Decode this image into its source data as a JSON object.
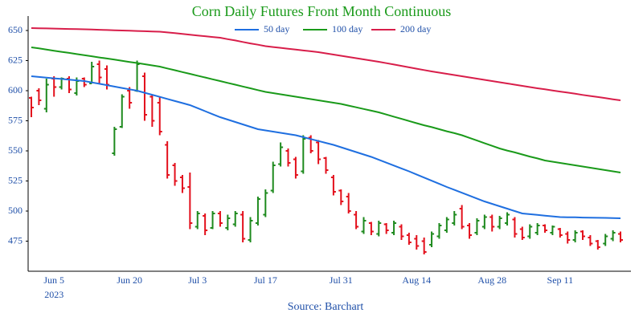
{
  "chart_data": {
    "type": "ohlc",
    "title": "Corn Daily Futures Front Month Continuous",
    "source": "Source: Barchart",
    "year_label": "2023",
    "legend": "top",
    "grid": false,
    "up_color": "#1e8a1e",
    "down_color": "#e3101c",
    "ylim": [
      450,
      662
    ],
    "yticks": [
      475,
      500,
      525,
      550,
      575,
      600,
      625,
      650
    ],
    "categories": [
      null,
      null,
      null,
      "Jun 5",
      null,
      null,
      null,
      null,
      null,
      null,
      null,
      null,
      null,
      "Jun 20",
      null,
      null,
      null,
      null,
      null,
      null,
      null,
      null,
      "Jul 3",
      null,
      null,
      null,
      null,
      null,
      null,
      null,
      null,
      "Jul 17",
      null,
      null,
      null,
      null,
      null,
      null,
      null,
      null,
      null,
      "Jul 31",
      null,
      null,
      null,
      null,
      null,
      null,
      null,
      null,
      null,
      "Aug 14",
      null,
      null,
      null,
      null,
      null,
      null,
      null,
      null,
      null,
      "Aug 28",
      null,
      null,
      null,
      null,
      null,
      null,
      null,
      null,
      "Sep 11",
      null,
      null,
      null,
      null,
      null,
      null,
      null,
      null
    ],
    "ohlc": {
      "open": [
        594,
        600,
        585,
        610,
        603,
        610,
        598,
        610,
        606,
        622,
        618,
        548,
        570,
        600,
        600,
        612,
        595,
        590,
        555,
        538,
        528,
        520,
        487,
        496,
        486,
        498,
        486,
        489,
        497,
        476,
        490,
        497,
        517,
        539,
        550,
        543,
        533,
        561,
        557,
        544,
        528,
        517,
        512,
        497,
        483,
        490,
        481,
        489,
        482,
        487,
        480,
        477,
        475,
        472,
        479,
        484,
        490,
        502,
        488,
        482,
        487,
        495,
        487,
        490,
        493,
        485,
        479,
        482,
        488,
        482,
        485,
        481,
        476,
        483,
        478,
        475,
        473,
        477,
        481
      ],
      "high": [
        595,
        602,
        610,
        612,
        611,
        612,
        611,
        611,
        624,
        625,
        621,
        570,
        597,
        603,
        625,
        615,
        597,
        595,
        558,
        540,
        530,
        532,
        500,
        498,
        500,
        500,
        497,
        500,
        500,
        495,
        512,
        518,
        541,
        557,
        552,
        545,
        563,
        563,
        559,
        545,
        530,
        518,
        515,
        500,
        495,
        491,
        492,
        490,
        492,
        489,
        482,
        480,
        478,
        483,
        490,
        495,
        500,
        505,
        490,
        494,
        497,
        497,
        496,
        499,
        495,
        487,
        489,
        490,
        489,
        488,
        486,
        483,
        484,
        484,
        480,
        476,
        481,
        484,
        483
      ],
      "low": [
        578,
        588,
        582,
        595,
        601,
        598,
        596,
        603,
        606,
        606,
        601,
        546,
        569,
        585,
        599,
        575,
        570,
        563,
        527,
        521,
        515,
        485,
        485,
        480,
        485,
        487,
        484,
        487,
        474,
        474,
        488,
        495,
        515,
        537,
        537,
        527,
        531,
        548,
        539,
        531,
        513,
        505,
        498,
        485,
        481,
        480,
        479,
        481,
        480,
        476,
        472,
        468,
        464,
        470,
        477,
        482,
        488,
        485,
        477,
        480,
        485,
        483,
        485,
        488,
        478,
        476,
        477,
        480,
        482,
        480,
        478,
        473,
        474,
        476,
        471,
        468,
        471,
        475,
        474
      ],
      "close": [
        586,
        592,
        605,
        603,
        610,
        601,
        608,
        605,
        620,
        611,
        605,
        568,
        595,
        590,
        622,
        580,
        575,
        566,
        530,
        525,
        519,
        490,
        498,
        484,
        498,
        490,
        494,
        498,
        477,
        492,
        510,
        515,
        538,
        553,
        540,
        530,
        560,
        550,
        543,
        534,
        516,
        508,
        500,
        487,
        492,
        483,
        490,
        484,
        490,
        479,
        474,
        471,
        466,
        481,
        488,
        493,
        497,
        487,
        480,
        492,
        495,
        487,
        494,
        497,
        481,
        478,
        487,
        488,
        484,
        487,
        480,
        476,
        482,
        479,
        473,
        470,
        479,
        482,
        476
      ]
    },
    "series": [
      {
        "name": "50 day",
        "color": "#1f6fe0",
        "values": [
          612,
          611.4,
          610.9,
          610.3,
          609.7,
          609.1,
          608.6,
          608,
          606.9,
          605.7,
          604.6,
          603.4,
          602.3,
          601.1,
          600,
          598.3,
          596.6,
          594.9,
          593.1,
          591.4,
          589.7,
          588,
          585.5,
          583,
          580.5,
          578,
          576,
          574,
          572,
          570,
          568,
          567,
          566,
          565,
          564,
          563,
          561.4,
          559.8,
          558.2,
          556.6,
          555,
          553,
          551,
          549,
          547,
          545,
          542.6,
          540.2,
          537.8,
          535.4,
          533,
          530.4,
          527.8,
          525.2,
          522.6,
          520,
          517.6,
          515.2,
          512.8,
          510.4,
          508,
          506,
          504,
          502,
          500,
          498,
          497.4,
          496.8,
          496.2,
          495.6,
          495,
          494.9,
          494.8,
          494.6,
          494.5,
          494.4,
          494.3,
          494.1,
          494
        ]
      },
      {
        "name": "100 day",
        "color": "#1a9a1a",
        "values": [
          636,
          635.1,
          634.1,
          633.2,
          632.3,
          631.4,
          630.4,
          629.5,
          628.6,
          627.6,
          626.7,
          625.8,
          624.9,
          623.9,
          623,
          622,
          621,
          620,
          618.5,
          617,
          615.5,
          614,
          612.5,
          611,
          609.5,
          608,
          606.5,
          605,
          603.5,
          602,
          600.5,
          599,
          598,
          597,
          596,
          595,
          594,
          593,
          592,
          591,
          590,
          589,
          587.6,
          586.2,
          584.8,
          583.4,
          582,
          580.2,
          578.4,
          576.6,
          574.8,
          573,
          571.3,
          569.7,
          568,
          566.3,
          564.7,
          563,
          560.8,
          558.6,
          556.4,
          554.2,
          552,
          550.3,
          548.7,
          547,
          545.3,
          543.7,
          542,
          541,
          540,
          539,
          538,
          537,
          536,
          535,
          534,
          533,
          532
        ]
      },
      {
        "name": "200 day",
        "color": "#d81e4a",
        "values": [
          652,
          651.9,
          651.7,
          651.6,
          651.4,
          651.3,
          651.1,
          651,
          650.8,
          650.6,
          650.4,
          650.2,
          650,
          649.8,
          649.6,
          649.4,
          649.2,
          649,
          648.4,
          647.8,
          647.1,
          646.5,
          645.9,
          645.3,
          644.6,
          644,
          642.8,
          641.7,
          640.5,
          639.3,
          638.2,
          637,
          636.3,
          635.6,
          634.9,
          634.1,
          633.4,
          632.7,
          632,
          631,
          630,
          629,
          628,
          627,
          626,
          625,
          624,
          622.9,
          621.7,
          620.6,
          619.4,
          618.3,
          617.1,
          616,
          615,
          614,
          613,
          612,
          611,
          610,
          609,
          608,
          607,
          606,
          605,
          604,
          603,
          602,
          601.1,
          600.2,
          599.3,
          598.4,
          597.5,
          596.5,
          595.6,
          594.7,
          593.8,
          592.9,
          592
        ]
      }
    ]
  }
}
